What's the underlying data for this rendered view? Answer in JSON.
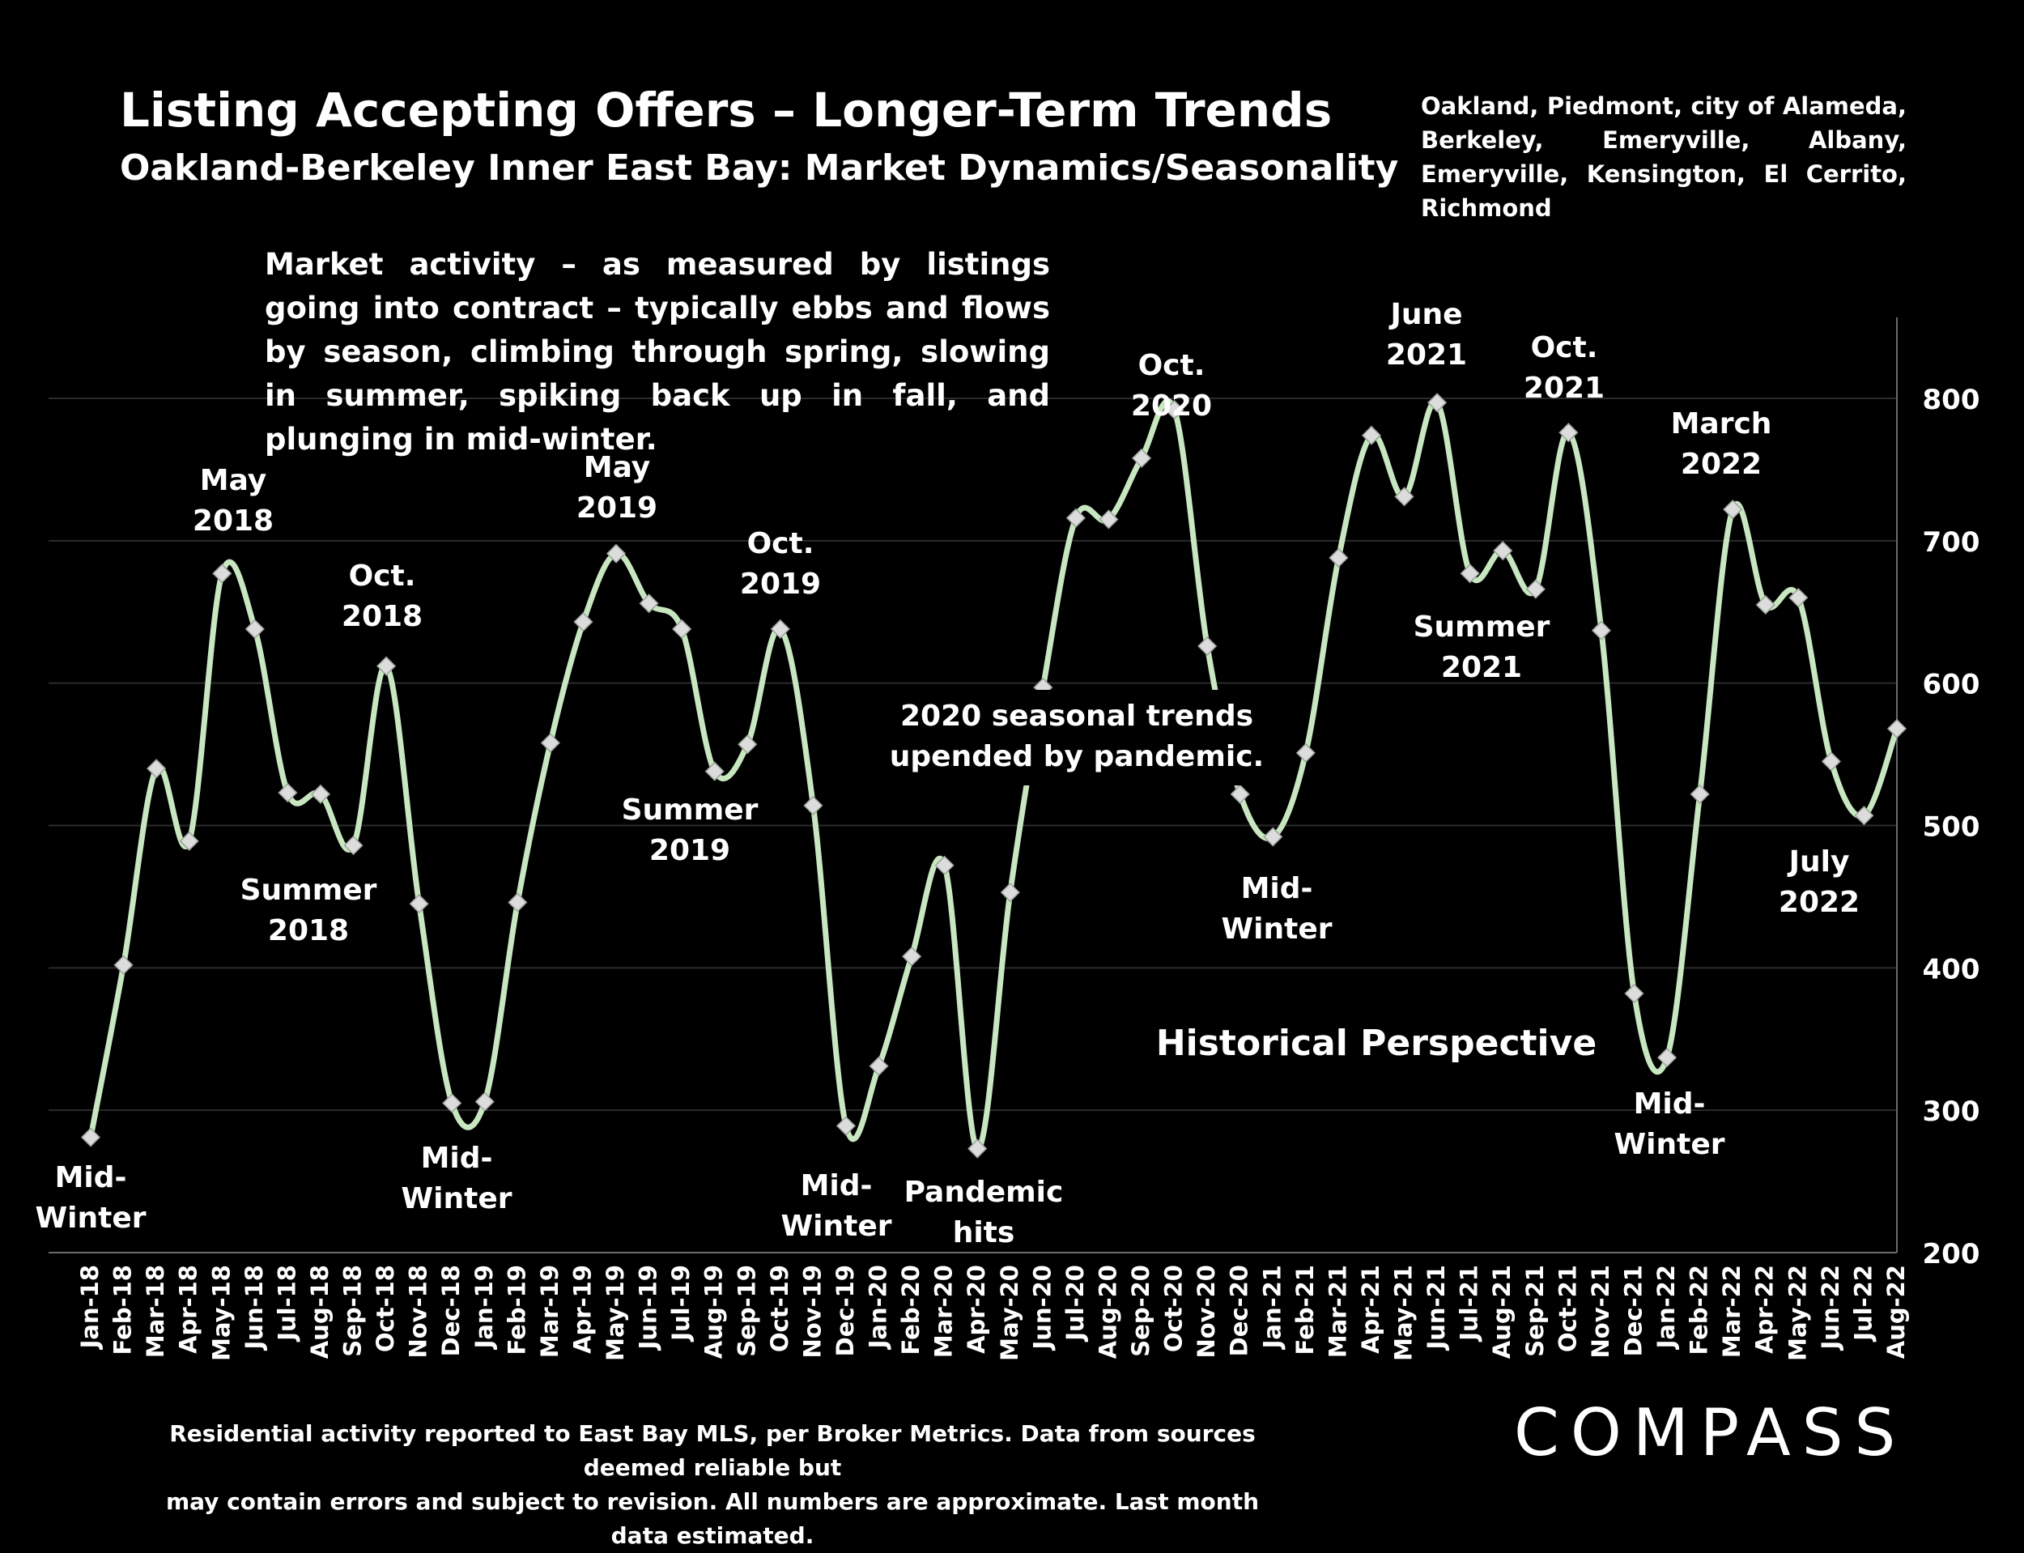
{
  "header": {
    "title": "Listing Accepting Offers – Longer-Term Trends",
    "subtitle": "Oakland-Berkeley Inner East Bay: Market Dynamics/Seasonality",
    "region": "Oakland, Piedmont, city of Alameda, Berkeley, Emeryville, Albany, Emeryville, Kensington, El Cerrito, Richmond"
  },
  "description": "Market activity – as measured by listings going into contract – typically ebbs and flows by season, climbing through spring, slowing in summer, spiking back up in fall, and plunging in mid-winter.",
  "footnote": {
    "line1": "Residential activity reported to East Bay MLS, per Broker Metrics. Data from sources deemed reliable but",
    "line2": "may contain errors and subject to revision. All numbers are approximate. Last month data estimated."
  },
  "logo": {
    "text": "COMPASS"
  },
  "chart_data": {
    "type": "line",
    "title": "Listing Accepting Offers – Longer-Term Trends",
    "xlabel": "",
    "ylabel": "",
    "ylim": [
      200,
      850
    ],
    "yticks": [
      200,
      300,
      400,
      500,
      600,
      700,
      800
    ],
    "grid": true,
    "y_axis_side": "right",
    "line_color": "#c8e6c0",
    "marker_color": "#dcdcdc",
    "categories": [
      "Jan-18",
      "Feb-18",
      "Mar-18",
      "Apr-18",
      "May-18",
      "Jun-18",
      "Jul-18",
      "Aug-18",
      "Sep-18",
      "Oct-18",
      "Nov-18",
      "Dec-18",
      "Jan-19",
      "Feb-19",
      "Mar-19",
      "Apr-19",
      "May-19",
      "Jun-19",
      "Jul-19",
      "Aug-19",
      "Sep-19",
      "Oct-19",
      "Nov-19",
      "Dec-19",
      "Jan-20",
      "Feb-20",
      "Mar-20",
      "Apr-20",
      "May-20",
      "Jun-20",
      "Jul-20",
      "Aug-20",
      "Sep-20",
      "Oct-20",
      "Nov-20",
      "Dec-20",
      "Jan-21",
      "Feb-21",
      "Mar-21",
      "Apr-21",
      "May-21",
      "Jun-21",
      "Jul-21",
      "Aug-21",
      "Sep-21",
      "Oct-21",
      "Nov-21",
      "Dec-21",
      "Jan-22",
      "Feb-22",
      "Mar-22",
      "Apr-22",
      "May-22",
      "Jun-22",
      "Jul-22",
      "Aug-22"
    ],
    "series": [
      {
        "values": [
          281,
          402,
          540,
          489,
          677,
          638,
          523,
          522,
          486,
          612,
          445,
          305,
          306,
          446,
          558,
          643,
          691,
          656,
          638,
          538,
          557,
          638,
          514,
          289,
          331,
          408,
          472,
          273,
          453,
          597,
          716,
          715,
          758,
          792,
          626,
          522,
          492,
          551,
          688,
          774,
          731,
          797,
          677,
          693,
          666,
          776,
          637,
          382,
          337,
          522,
          722,
          655,
          660,
          545,
          507,
          568
        ]
      }
    ],
    "annotations": [
      {
        "lines": [
          "Mid-",
          "Winter"
        ]
      },
      {
        "lines": [
          "May",
          "2018"
        ]
      },
      {
        "lines": [
          "Summer",
          "2018"
        ]
      },
      {
        "lines": [
          "Oct.",
          "2018"
        ]
      },
      {
        "lines": [
          "Mid-",
          "Winter"
        ]
      },
      {
        "lines": [
          "May",
          "2019"
        ]
      },
      {
        "lines": [
          "Summer",
          "2019"
        ]
      },
      {
        "lines": [
          "Oct.",
          "2019"
        ]
      },
      {
        "lines": [
          "Mid-",
          "Winter"
        ]
      },
      {
        "lines": [
          "Pandemic",
          "hits"
        ]
      },
      {
        "lines": [
          "2020 seasonal trends",
          "upended by pandemic."
        ]
      },
      {
        "lines": [
          "Oct.",
          "2020"
        ]
      },
      {
        "lines": [
          "Mid-",
          "Winter"
        ]
      },
      {
        "lines": [
          "June",
          "2021"
        ]
      },
      {
        "lines": [
          "Summer",
          "2021"
        ]
      },
      {
        "lines": [
          "Oct.",
          "2021"
        ]
      },
      {
        "lines": [
          "Mid-",
          "Winter"
        ]
      },
      {
        "lines": [
          "March",
          "2022"
        ]
      },
      {
        "lines": [
          "July",
          "2022"
        ]
      },
      {
        "lines": [
          "Historical Perspective"
        ]
      }
    ]
  }
}
